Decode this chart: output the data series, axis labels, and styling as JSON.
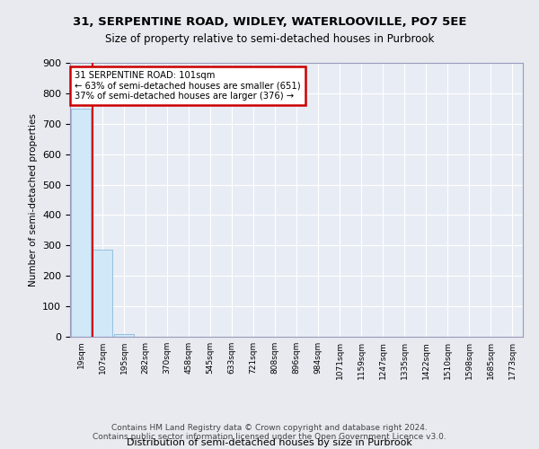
{
  "title1": "31, SERPENTINE ROAD, WIDLEY, WATERLOOVILLE, PO7 5EE",
  "title2": "Size of property relative to semi-detached houses in Purbrook",
  "xlabel": "Distribution of semi-detached houses by size in Purbrook",
  "ylabel": "Number of semi-detached properties",
  "footer1": "Contains HM Land Registry data © Crown copyright and database right 2024.",
  "footer2": "Contains public sector information licensed under the Open Government Licence v3.0.",
  "annotation_line1": "31 SERPENTINE ROAD: 101sqm",
  "annotation_line2": "← 63% of semi-detached houses are smaller (651)",
  "annotation_line3": "37% of semi-detached houses are larger (376) →",
  "property_bin_index": 1,
  "bar_color": "#d0e8f8",
  "bar_edge_color": "#7ab0d4",
  "marker_color": "#cc0000",
  "annotation_box_color": "#cc0000",
  "categories": [
    "19sqm",
    "107sqm",
    "195sqm",
    "282sqm",
    "370sqm",
    "458sqm",
    "545sqm",
    "633sqm",
    "721sqm",
    "808sqm",
    "896sqm",
    "984sqm",
    "1071sqm",
    "1159sqm",
    "1247sqm",
    "1335sqm",
    "1422sqm",
    "1510sqm",
    "1598sqm",
    "1685sqm",
    "1773sqm"
  ],
  "values": [
    750,
    285,
    8,
    0,
    0,
    0,
    0,
    0,
    0,
    0,
    0,
    0,
    0,
    0,
    0,
    0,
    0,
    0,
    0,
    0,
    0
  ],
  "ylim": [
    0,
    900
  ],
  "yticks": [
    0,
    100,
    200,
    300,
    400,
    500,
    600,
    700,
    800,
    900
  ],
  "background_color": "#e8eaf0",
  "plot_background": "#e8ecf4"
}
